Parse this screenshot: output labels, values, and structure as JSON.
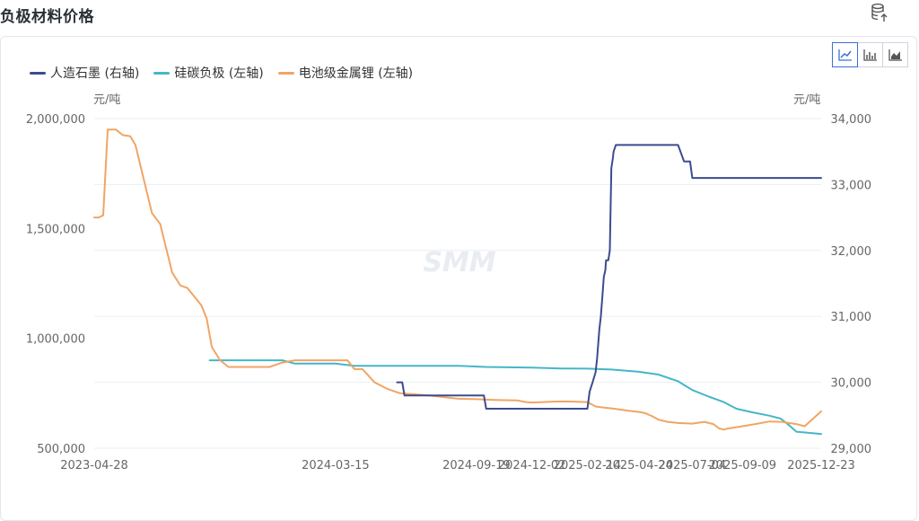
{
  "header": {
    "title": "负极材料价格",
    "export_icon": "database-export-icon"
  },
  "toolbar": {
    "options": [
      "line-chart-icon",
      "bar-chart-icon",
      "area-chart-icon"
    ],
    "active": "line-chart-icon"
  },
  "watermark": "SMM",
  "chart_data": {
    "type": "line",
    "left_unit": "元/吨",
    "right_unit": "元/吨",
    "left_ylim": [
      500000,
      2000000
    ],
    "right_ylim": [
      29000,
      34000
    ],
    "left_ticks": [
      "500,000",
      "1,000,000",
      "1,500,000",
      "2,000,000"
    ],
    "right_ticks": [
      "29,000",
      "30,000",
      "31,000",
      "32,000",
      "33,000",
      "34,000"
    ],
    "x_ticks": [
      "2023-04-28",
      "2024-03-15",
      "2024-09-19",
      "2024-12-02",
      "2025-02-14",
      "2025-04-24",
      "2025-07-04",
      "2025-09-09",
      "2025-12-23"
    ],
    "x_range": [
      "2023-04-28",
      "2025-12-23"
    ],
    "grid": true,
    "legend_position": "top-left",
    "series": [
      {
        "name": "人造石墨 (右轴)",
        "axis": "right",
        "color": "#3d4b8f",
        "points": [
          [
            "2024-06-05",
            30000
          ],
          [
            "2024-06-12",
            30000
          ],
          [
            "2024-06-15",
            29800
          ],
          [
            "2024-08-26",
            29800
          ],
          [
            "2024-09-29",
            29800
          ],
          [
            "2024-10-02",
            29600
          ],
          [
            "2025-02-14",
            29600
          ],
          [
            "2025-02-17",
            29860
          ],
          [
            "2025-02-21",
            30000
          ],
          [
            "2025-02-25",
            30150
          ],
          [
            "2025-02-27",
            30360
          ],
          [
            "2025-03-02",
            30800
          ],
          [
            "2025-03-04",
            31000
          ],
          [
            "2025-03-06",
            31300
          ],
          [
            "2025-03-08",
            31600
          ],
          [
            "2025-03-10",
            31700
          ],
          [
            "2025-03-11",
            31850
          ],
          [
            "2025-03-13",
            31850
          ],
          [
            "2025-03-14",
            31850
          ],
          [
            "2025-03-16",
            32000
          ],
          [
            "2025-03-18",
            33250
          ],
          [
            "2025-03-20",
            33400
          ],
          [
            "2025-03-21",
            33500
          ],
          [
            "2025-03-24",
            33600
          ],
          [
            "2025-06-15",
            33600
          ],
          [
            "2025-06-23",
            33350
          ],
          [
            "2025-07-01",
            33350
          ],
          [
            "2025-07-04",
            33100
          ],
          [
            "2025-12-23",
            33100
          ]
        ]
      },
      {
        "name": "硅碳负极 (左轴)",
        "axis": "left",
        "color": "#45b6c9",
        "points": [
          [
            "2023-09-29",
            900000
          ],
          [
            "2024-01-04",
            900000
          ],
          [
            "2024-01-21",
            885000
          ],
          [
            "2024-03-15",
            885000
          ],
          [
            "2024-04-09",
            875000
          ],
          [
            "2024-05-28",
            875000
          ],
          [
            "2024-08-26",
            875000
          ],
          [
            "2024-10-02",
            870000
          ],
          [
            "2024-11-12",
            868000
          ],
          [
            "2024-12-02",
            867000
          ],
          [
            "2025-01-11",
            863000
          ],
          [
            "2025-02-14",
            862000
          ],
          [
            "2025-03-18",
            858000
          ],
          [
            "2025-04-24",
            848000
          ],
          [
            "2025-05-20",
            835000
          ],
          [
            "2025-06-15",
            805000
          ],
          [
            "2025-07-04",
            765000
          ],
          [
            "2025-07-26",
            735000
          ],
          [
            "2025-08-15",
            710000
          ],
          [
            "2025-09-01",
            680000
          ],
          [
            "2025-09-20",
            665000
          ],
          [
            "2025-10-15",
            648000
          ],
          [
            "2025-10-30",
            635000
          ],
          [
            "2025-11-10",
            605000
          ],
          [
            "2025-11-20",
            575000
          ],
          [
            "2025-12-23",
            565000
          ]
        ]
      },
      {
        "name": "电池级金属锂 (左轴)",
        "axis": "left",
        "color": "#f0a565",
        "points": [
          [
            "2023-04-28",
            1550000
          ],
          [
            "2023-05-04",
            1550000
          ],
          [
            "2023-05-10",
            1560000
          ],
          [
            "2023-05-16",
            1950000
          ],
          [
            "2023-05-27",
            1950000
          ],
          [
            "2023-06-05",
            1925000
          ],
          [
            "2023-06-15",
            1920000
          ],
          [
            "2023-06-22",
            1880000
          ],
          [
            "2023-07-14",
            1570000
          ],
          [
            "2023-07-25",
            1520000
          ],
          [
            "2023-08-10",
            1300000
          ],
          [
            "2023-08-21",
            1240000
          ],
          [
            "2023-08-30",
            1230000
          ],
          [
            "2023-09-11",
            1180000
          ],
          [
            "2023-09-18",
            1150000
          ],
          [
            "2023-09-25",
            1090000
          ],
          [
            "2023-10-02",
            960000
          ],
          [
            "2023-10-13",
            900000
          ],
          [
            "2023-10-24",
            870000
          ],
          [
            "2023-11-04",
            870000
          ],
          [
            "2023-11-26",
            870000
          ],
          [
            "2023-12-18",
            870000
          ],
          [
            "2024-01-04",
            890000
          ],
          [
            "2024-01-21",
            900000
          ],
          [
            "2024-02-12",
            900000
          ],
          [
            "2024-03-15",
            900000
          ],
          [
            "2024-03-31",
            900000
          ],
          [
            "2024-04-09",
            860000
          ],
          [
            "2024-04-20",
            860000
          ],
          [
            "2024-05-06",
            800000
          ],
          [
            "2024-05-23",
            770000
          ],
          [
            "2024-06-09",
            750000
          ],
          [
            "2024-07-18",
            740000
          ],
          [
            "2024-08-26",
            725000
          ],
          [
            "2024-09-19",
            723000
          ],
          [
            "2024-10-13",
            720000
          ],
          [
            "2024-11-12",
            718000
          ],
          [
            "2024-11-24",
            710000
          ],
          [
            "2024-12-02",
            708000
          ],
          [
            "2024-12-30",
            712000
          ],
          [
            "2025-01-11",
            713000
          ],
          [
            "2025-01-27",
            712000
          ],
          [
            "2025-02-14",
            710000
          ],
          [
            "2025-02-25",
            690000
          ],
          [
            "2025-03-08",
            685000
          ],
          [
            "2025-03-22",
            680000
          ],
          [
            "2025-04-11",
            670000
          ],
          [
            "2025-04-24",
            665000
          ],
          [
            "2025-05-02",
            660000
          ],
          [
            "2025-05-12",
            645000
          ],
          [
            "2025-05-20",
            630000
          ],
          [
            "2025-06-01",
            620000
          ],
          [
            "2025-06-15",
            615000
          ],
          [
            "2025-07-04",
            612000
          ],
          [
            "2025-07-20",
            620000
          ],
          [
            "2025-08-01",
            610000
          ],
          [
            "2025-08-09",
            590000
          ],
          [
            "2025-08-15",
            585000
          ],
          [
            "2025-08-21",
            590000
          ],
          [
            "2025-09-09",
            600000
          ],
          [
            "2025-09-26",
            610000
          ],
          [
            "2025-10-15",
            622000
          ],
          [
            "2025-11-01",
            620000
          ],
          [
            "2025-11-10",
            615000
          ],
          [
            "2025-11-20",
            610000
          ],
          [
            "2025-12-01",
            600000
          ],
          [
            "2025-12-10",
            628000
          ],
          [
            "2025-12-23",
            668000
          ]
        ]
      }
    ]
  }
}
